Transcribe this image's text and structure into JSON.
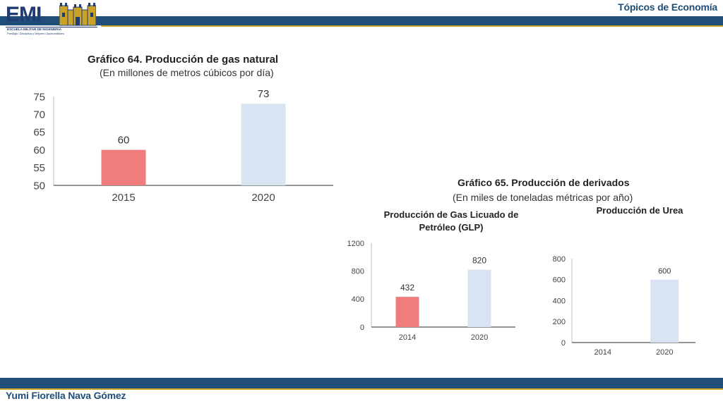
{
  "header": {
    "title": "Tópicos de Economía"
  },
  "footer": {
    "author": "Yumi Fiorella Nava Gómez"
  },
  "logo": {
    "text": "EMI",
    "subtitle": "ESCUELA MILITAR DE INGENIERIA",
    "motto": "Prestigio, Disciplina y Mejores Oportunidades"
  },
  "colors": {
    "bar_blue": "#1f4e79",
    "accent_gold": "#c9a227",
    "bar_red": "#f07c7c",
    "bar_light": "#d9e4f2"
  },
  "chart64": {
    "title": "Gráfico 64. Producción de gas natural",
    "subtitle": "(En millones de metros cúbicos por día)"
  },
  "chart65": {
    "title": "Gráfico 65. Producción de derivados",
    "subtitle": "(En miles de toneladas métricas por año)"
  },
  "chart_data": [
    {
      "type": "bar",
      "title": "Gráfico 64. Producción de gas natural",
      "subtitle": "(En millones de metros cúbicos por día)",
      "categories": [
        "2015",
        "2020"
      ],
      "values": [
        60,
        73
      ],
      "data_labels": [
        "60",
        "73"
      ],
      "ylim": [
        50,
        75
      ],
      "yticks": [
        50,
        55,
        60,
        65,
        70,
        75
      ],
      "grid": false
    },
    {
      "type": "bar",
      "title": "Producción de Gas Licuado de Petróleo (GLP)",
      "title_lines": [
        "Producción de Gas Licuado de",
        "Petróleo (GLP)"
      ],
      "categories": [
        "2014",
        "2020"
      ],
      "values": [
        432,
        820
      ],
      "data_labels": [
        "432",
        "820"
      ],
      "ylim": [
        0,
        1200
      ],
      "yticks": [
        0,
        400,
        800,
        1200
      ],
      "grid": false
    },
    {
      "type": "bar",
      "title": "Producción de Urea",
      "title_lines": [
        "Producción de Urea"
      ],
      "categories": [
        "2014",
        "2020"
      ],
      "values": [
        0,
        600
      ],
      "data_labels": [
        "",
        "600"
      ],
      "ylim": [
        0,
        800
      ],
      "yticks": [
        0,
        200,
        400,
        600,
        800
      ],
      "grid": false
    }
  ]
}
